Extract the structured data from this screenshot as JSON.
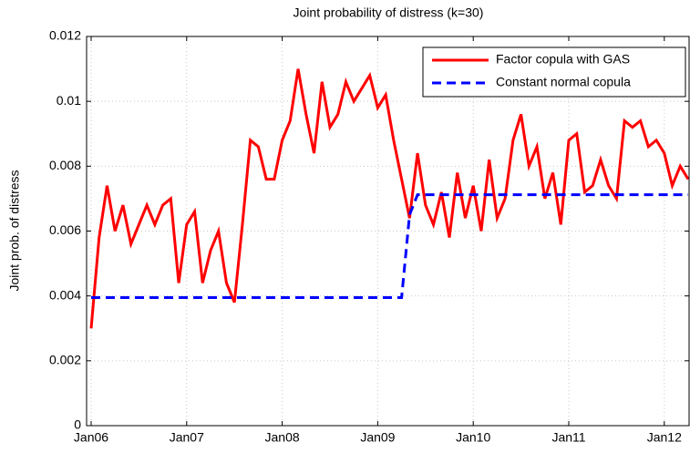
{
  "chart_data": {
    "type": "line",
    "title": "Joint probability of distress (k=30)",
    "y_label": "Joint prob. of distress",
    "x": [
      "2006-01",
      "2006-02",
      "2006-03",
      "2006-04",
      "2006-05",
      "2006-06",
      "2006-07",
      "2006-08",
      "2006-09",
      "2006-10",
      "2006-11",
      "2006-12",
      "2007-01",
      "2007-02",
      "2007-03",
      "2007-04",
      "2007-05",
      "2007-06",
      "2007-07",
      "2007-08",
      "2007-09",
      "2007-10",
      "2007-11",
      "2007-12",
      "2008-01",
      "2008-02",
      "2008-03",
      "2008-04",
      "2008-05",
      "2008-06",
      "2008-07",
      "2008-08",
      "2008-09",
      "2008-10",
      "2008-11",
      "2008-12",
      "2009-01",
      "2009-02",
      "2009-03",
      "2009-04",
      "2009-05",
      "2009-06",
      "2009-07",
      "2009-08",
      "2009-09",
      "2009-10",
      "2009-11",
      "2009-12",
      "2010-01",
      "2010-02",
      "2010-03",
      "2010-04",
      "2010-05",
      "2010-06",
      "2010-07",
      "2010-08",
      "2010-09",
      "2010-10",
      "2010-11",
      "2010-12",
      "2011-01",
      "2011-02",
      "2011-03",
      "2011-04",
      "2011-05",
      "2011-06",
      "2011-07",
      "2011-08",
      "2011-09",
      "2011-10",
      "2011-11",
      "2011-12",
      "2012-01",
      "2012-02",
      "2012-03",
      "2012-04"
    ],
    "series": [
      {
        "name": "Factor copula with GAS",
        "color": "#ff0000",
        "dash": "solid",
        "values": [
          0.003,
          0.0058,
          0.0074,
          0.006,
          0.0068,
          0.0056,
          0.0062,
          0.0068,
          0.0062,
          0.0068,
          0.007,
          0.0044,
          0.0062,
          0.0066,
          0.0044,
          0.0054,
          0.006,
          0.0044,
          0.0038,
          0.0062,
          0.0088,
          0.0086,
          0.0076,
          0.0076,
          0.0088,
          0.0094,
          0.011,
          0.0096,
          0.0084,
          0.0106,
          0.0092,
          0.0096,
          0.0106,
          0.01,
          0.0104,
          0.0108,
          0.0098,
          0.0102,
          0.0088,
          0.0076,
          0.0064,
          0.0084,
          0.0068,
          0.0062,
          0.0072,
          0.0058,
          0.0078,
          0.0064,
          0.0074,
          0.006,
          0.0082,
          0.0064,
          0.007,
          0.0088,
          0.0096,
          0.008,
          0.0086,
          0.007,
          0.0078,
          0.0062,
          0.0088,
          0.009,
          0.0072,
          0.0074,
          0.0082,
          0.0074,
          0.007,
          0.0094,
          0.0092,
          0.0094,
          0.0086,
          0.0088,
          0.0084,
          0.0074,
          0.008,
          0.0076
        ]
      },
      {
        "name": "Constant normal copula",
        "color": "#0000ff",
        "dash": "dashed",
        "values": [
          0.00395,
          0.00395,
          0.00395,
          0.00395,
          0.00395,
          0.00395,
          0.00395,
          0.00395,
          0.00395,
          0.00395,
          0.00395,
          0.00395,
          0.00395,
          0.00395,
          0.00395,
          0.00395,
          0.00395,
          0.00395,
          0.00395,
          0.00395,
          0.00395,
          0.00395,
          0.00395,
          0.00395,
          0.00395,
          0.00395,
          0.00395,
          0.00395,
          0.00395,
          0.00395,
          0.00395,
          0.00395,
          0.00395,
          0.00395,
          0.00395,
          0.00395,
          0.00395,
          0.00395,
          0.00395,
          0.00395,
          0.0065,
          0.00712,
          0.00712,
          0.00712,
          0.00712,
          0.00712,
          0.00712,
          0.00712,
          0.00712,
          0.00712,
          0.00712,
          0.00712,
          0.00712,
          0.00712,
          0.00712,
          0.00712,
          0.00712,
          0.00712,
          0.00712,
          0.00712,
          0.00712,
          0.00712,
          0.00712,
          0.00712,
          0.00712,
          0.00712,
          0.00712,
          0.00712,
          0.00712,
          0.00712,
          0.00712,
          0.00712,
          0.00712,
          0.00712,
          0.00712,
          0.00712
        ]
      }
    ],
    "xlim": [
      "2006-01",
      "2012-04"
    ],
    "xticks": [
      {
        "value": "2006-01",
        "label": "Jan06"
      },
      {
        "value": "2007-01",
        "label": "Jan07"
      },
      {
        "value": "2008-01",
        "label": "Jan08"
      },
      {
        "value": "2009-01",
        "label": "Jan09"
      },
      {
        "value": "2010-01",
        "label": "Jan10"
      },
      {
        "value": "2011-01",
        "label": "Jan11"
      },
      {
        "value": "2012-01",
        "label": "Jan12"
      }
    ],
    "ylim": [
      0,
      0.012
    ],
    "yticks": [
      0,
      0.002,
      0.004,
      0.006,
      0.008,
      0.01,
      0.012
    ],
    "grid": true,
    "legend": "northeast"
  }
}
